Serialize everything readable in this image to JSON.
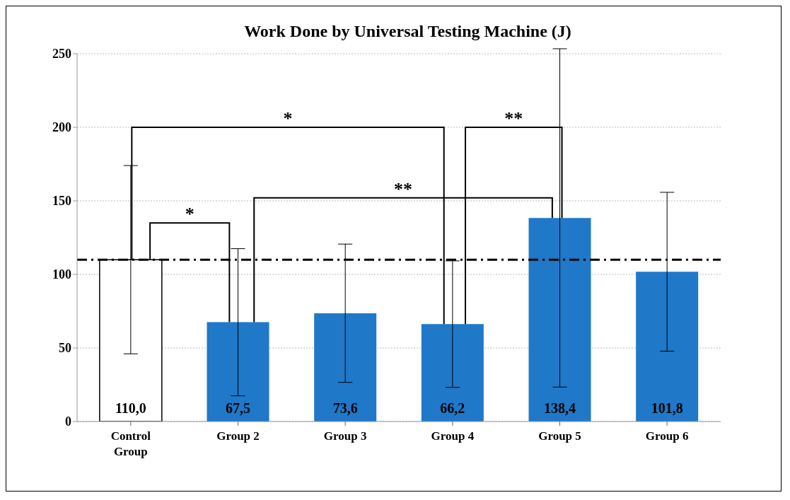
{
  "chart_data": {
    "type": "bar",
    "title": "Work Done by Universal Testing Machine (J)",
    "categories": [
      "Control Group",
      "Group 2",
      "Group 3",
      "Group 4",
      "Group 5",
      "Group 6"
    ],
    "values": [
      110.0,
      67.5,
      73.6,
      66.2,
      138.4,
      101.8
    ],
    "colors": [
      "#ffffff",
      "#1f78c8",
      "#1f78c8",
      "#1f78c8",
      "#1f78c8",
      "#1f78c8"
    ],
    "errors": [
      64,
      50,
      47,
      43,
      115,
      54
    ],
    "value_labels": [
      "110,0",
      "67,5",
      "73,6",
      "66,2",
      "138,4",
      "101,8"
    ],
    "ylim": [
      0,
      250
    ],
    "yticks": [
      0,
      50,
      100,
      150,
      200,
      250
    ],
    "grid": "y",
    "ref_lines": [
      {
        "axis": "y",
        "value": 110,
        "color": "#000000",
        "line_style": "dashed"
      }
    ],
    "annotations": [
      "*",
      "*",
      "**",
      "**"
    ]
  }
}
